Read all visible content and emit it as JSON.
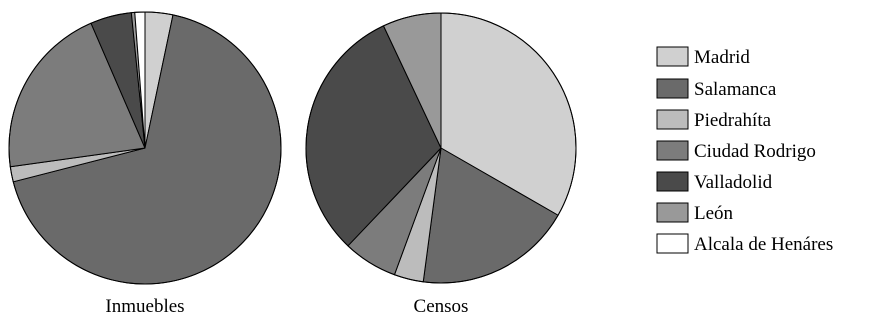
{
  "chart_data": [
    {
      "type": "pie",
      "title": "Inmuebles",
      "categories": [
        "Madrid",
        "Salamanca",
        "Piedrahíta",
        "Ciudad Rodrigo",
        "Valladolid",
        "León",
        "Alcala de Henáres"
      ],
      "values": [
        3.3,
        67.7,
        1.8,
        20.7,
        4.9,
        0.4,
        1.2
      ]
    },
    {
      "type": "pie",
      "title": "Censos",
      "categories": [
        "Madrid",
        "Salamanca",
        "Piedrahíta",
        "Ciudad Rodrigo",
        "Valladolid",
        "León",
        "Alcala de Henáres"
      ],
      "values": [
        33.3,
        18.8,
        3.5,
        6.5,
        30.9,
        7.0,
        0.0
      ]
    }
  ],
  "legend": {
    "placement": "right",
    "items": [
      {
        "label": "Madrid",
        "color": "#d0d0d0"
      },
      {
        "label": "Salamanca",
        "color": "#6a6a6a"
      },
      {
        "label": "Piedrahíta",
        "color": "#bcbcbc"
      },
      {
        "label": "Ciudad Rodrigo",
        "color": "#7c7c7c"
      },
      {
        "label": "Valladolid",
        "color": "#4a4a4a"
      },
      {
        "label": "León",
        "color": "#999999"
      },
      {
        "label": "Alcala de Henáres",
        "color": "#ffffff"
      }
    ]
  }
}
